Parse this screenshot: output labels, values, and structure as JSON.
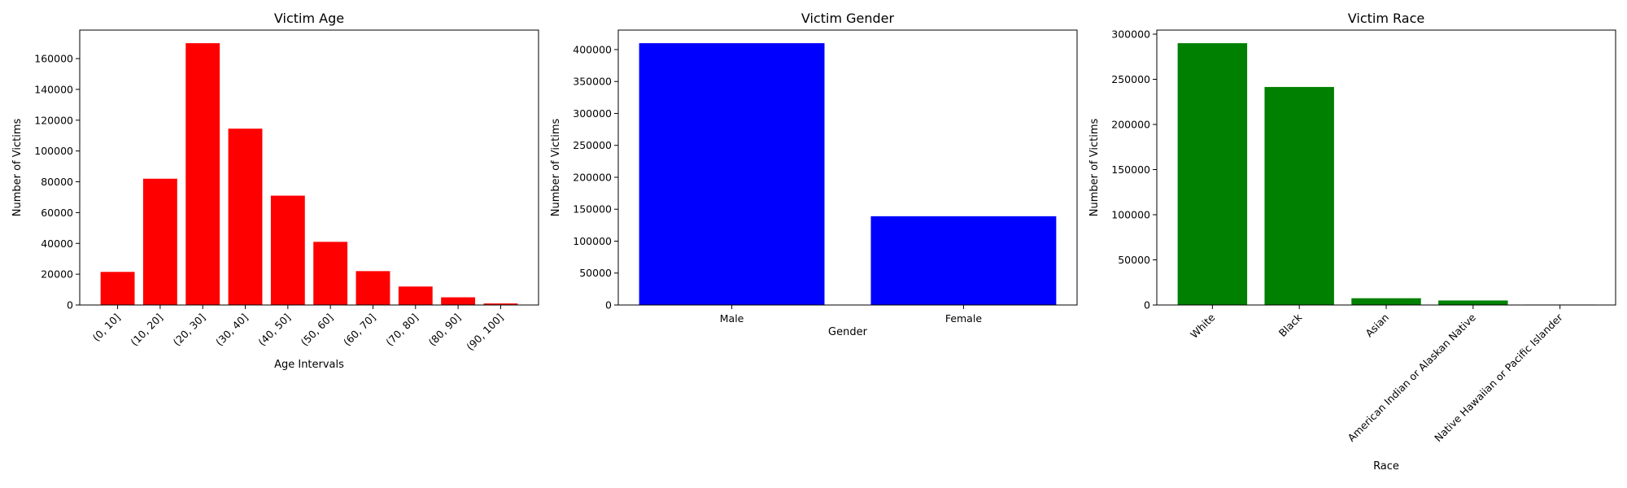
{
  "chart_data": [
    {
      "type": "bar",
      "title": "Victim Age",
      "xlabel": "Age Intervals",
      "ylabel": "Number of Victims",
      "color": "#ff0000",
      "categories": [
        "(0, 10]",
        "(10, 20]",
        "(20, 30]",
        "(30, 40]",
        "(40, 50]",
        "(50, 60]",
        "(60, 70]",
        "(70, 80]",
        "(80, 90]",
        "(90, 100]"
      ],
      "values": [
        21500,
        82000,
        170000,
        114500,
        71000,
        41000,
        22000,
        12000,
        5000,
        1000
      ],
      "ylim": [
        0,
        178500
      ],
      "yticks": [
        0,
        20000,
        40000,
        60000,
        80000,
        100000,
        120000,
        140000,
        160000
      ],
      "rotate_xticks": true
    },
    {
      "type": "bar",
      "title": "Victim Gender",
      "xlabel": "Gender",
      "ylabel": "Number of Victims",
      "color": "#0000ff",
      "categories": [
        "Male",
        "Female"
      ],
      "values": [
        410000,
        139000
      ],
      "ylim": [
        0,
        430500
      ],
      "yticks": [
        0,
        50000,
        100000,
        150000,
        200000,
        250000,
        300000,
        350000,
        400000
      ],
      "rotate_xticks": false
    },
    {
      "type": "bar",
      "title": "Victim Race",
      "xlabel": "Race",
      "ylabel": "Number of Victims",
      "color": "#008000",
      "categories": [
        "White",
        "Black",
        "Asian",
        "American Indian or Alaskan Native",
        "Native Hawaiian or Pacific Islander"
      ],
      "values": [
        290000,
        241500,
        7500,
        5000,
        500
      ],
      "ylim": [
        0,
        304500
      ],
      "yticks": [
        0,
        50000,
        100000,
        150000,
        200000,
        250000,
        300000
      ],
      "rotate_xticks": true
    }
  ]
}
